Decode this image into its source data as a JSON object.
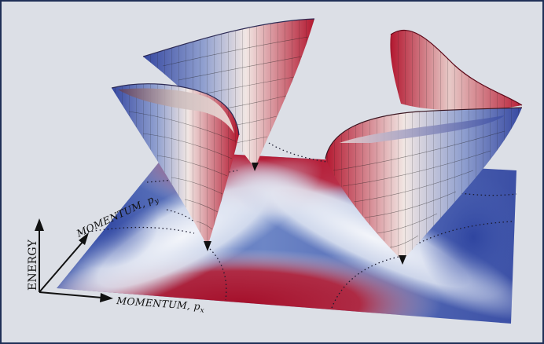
{
  "axes": {
    "energy": "ENERGY",
    "px_main": "MOMENTUM, ",
    "px_var": "p",
    "px_sub": "x",
    "py_main": "MOMENTUM, ",
    "py_var": "p",
    "py_sub": "y"
  },
  "colors": {
    "frame_border": "#1f2f57",
    "background": "#dcdfe6",
    "red": "#a5102b",
    "blue": "#3a4fa8",
    "white": "#eef2f8"
  },
  "cones": [
    {
      "name": "dirac-cone-front-left"
    },
    {
      "name": "dirac-cone-back-center"
    },
    {
      "name": "dirac-cone-front-right"
    },
    {
      "name": "dirac-cone-back-right"
    }
  ]
}
